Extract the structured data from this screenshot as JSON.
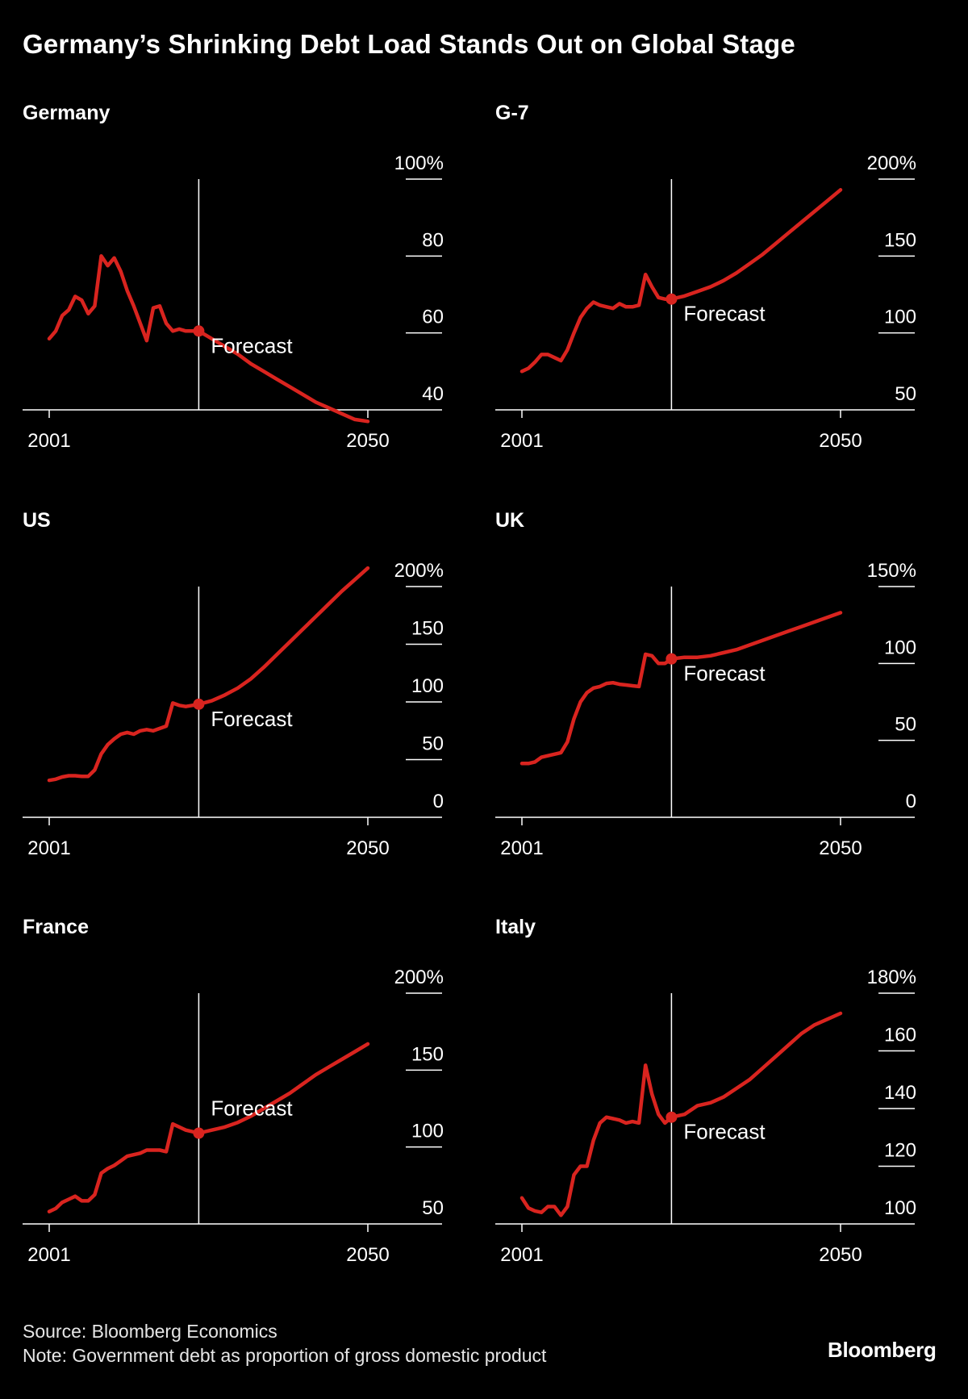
{
  "title": "Germany’s Shrinking Debt Load Stands Out on Global Stage",
  "source": "Source: Bloomberg Economics",
  "note": "Note: Government debt as proportion of gross domestic product",
  "brand": "Bloomberg",
  "colors": {
    "background": "#000000",
    "series": "#d9241f",
    "axis": "#ffffff",
    "text": "#ffffff"
  },
  "chart_data": [
    {
      "type": "line",
      "title": "Germany",
      "x_tick_labels": [
        "2001",
        "2050"
      ],
      "y_ticks": [
        40,
        60,
        80,
        100
      ],
      "y_tick_labels": [
        "40",
        "60",
        "80",
        "100%"
      ],
      "ylim": [
        40,
        100
      ],
      "xlim": [
        2001,
        2050
      ],
      "annotation": "Forecast",
      "forecast_start": 2024,
      "series": [
        {
          "x": [
            2001,
            2002,
            2003,
            2004,
            2005,
            2006,
            2007,
            2008,
            2009,
            2010,
            2011,
            2012,
            2013,
            2014,
            2015,
            2016,
            2017,
            2018,
            2019,
            2020,
            2021,
            2022,
            2023,
            2024,
            2026,
            2028,
            2030,
            2032,
            2034,
            2036,
            2038,
            2040,
            2042,
            2044,
            2046,
            2048,
            2050
          ],
          "y": [
            58.5,
            60.5,
            64.5,
            66,
            69.5,
            68.5,
            65,
            67,
            80,
            77.5,
            79.5,
            76,
            71,
            67,
            62.5,
            58,
            66.5,
            67,
            62.5,
            60.5,
            61,
            60.5,
            60.5,
            60.5,
            58.5,
            56.5,
            54.5,
            52,
            50,
            48,
            46,
            44,
            42,
            40.5,
            39,
            37.5,
            37
          ]
        }
      ]
    },
    {
      "type": "line",
      "title": "G-7",
      "x_tick_labels": [
        "2001",
        "2050"
      ],
      "y_ticks": [
        50,
        100,
        150,
        200
      ],
      "y_tick_labels": [
        "50",
        "100",
        "150",
        "200%"
      ],
      "ylim": [
        50,
        200
      ],
      "xlim": [
        2001,
        2050
      ],
      "annotation": "Forecast",
      "forecast_start": 2024,
      "series": [
        {
          "x": [
            2001,
            2002,
            2003,
            2004,
            2005,
            2006,
            2007,
            2008,
            2009,
            2010,
            2011,
            2012,
            2013,
            2014,
            2015,
            2016,
            2017,
            2018,
            2019,
            2020,
            2021,
            2022,
            2023,
            2024,
            2026,
            2028,
            2030,
            2032,
            2034,
            2036,
            2038,
            2040,
            2042,
            2044,
            2046,
            2048,
            2050
          ],
          "y": [
            75,
            77,
            81,
            86,
            86,
            84,
            82,
            89,
            100,
            110,
            116,
            120,
            118,
            117,
            116,
            119,
            117,
            117,
            118,
            138,
            130,
            123,
            122,
            122,
            124,
            127,
            130,
            134,
            139,
            145,
            151,
            158,
            165,
            172,
            179,
            186,
            193
          ]
        }
      ]
    },
    {
      "type": "line",
      "title": "US",
      "x_tick_labels": [
        "2001",
        "2050"
      ],
      "y_ticks": [
        0,
        50,
        100,
        150,
        200
      ],
      "y_tick_labels": [
        "0",
        "50",
        "100",
        "150",
        "200%"
      ],
      "ylim": [
        0,
        200
      ],
      "xlim": [
        2001,
        2050
      ],
      "annotation": "Forecast",
      "forecast_start": 2024,
      "series": [
        {
          "x": [
            2001,
            2002,
            2003,
            2004,
            2005,
            2006,
            2007,
            2008,
            2009,
            2010,
            2011,
            2012,
            2013,
            2014,
            2015,
            2016,
            2017,
            2018,
            2019,
            2020,
            2021,
            2022,
            2023,
            2024,
            2026,
            2028,
            2030,
            2032,
            2034,
            2036,
            2038,
            2040,
            2042,
            2044,
            2046,
            2048,
            2050
          ],
          "y": [
            32,
            33,
            35,
            36,
            36,
            35.5,
            35.5,
            41,
            55,
            63,
            68,
            72,
            73.5,
            72,
            75,
            76,
            75,
            77,
            79,
            99,
            97,
            96,
            97,
            98,
            101,
            106,
            112,
            120,
            130,
            141,
            152,
            163,
            174,
            185,
            196,
            206,
            216
          ]
        }
      ]
    },
    {
      "type": "line",
      "title": "UK",
      "x_tick_labels": [
        "2001",
        "2050"
      ],
      "y_ticks": [
        0,
        50,
        100,
        150
      ],
      "y_tick_labels": [
        "0",
        "50",
        "100",
        "150%"
      ],
      "ylim": [
        0,
        150
      ],
      "xlim": [
        2001,
        2050
      ],
      "annotation": "Forecast",
      "forecast_start": 2024,
      "series": [
        {
          "x": [
            2001,
            2002,
            2003,
            2004,
            2005,
            2006,
            2007,
            2008,
            2009,
            2010,
            2011,
            2012,
            2013,
            2014,
            2015,
            2016,
            2017,
            2018,
            2019,
            2020,
            2021,
            2022,
            2023,
            2024,
            2026,
            2028,
            2030,
            2032,
            2034,
            2036,
            2038,
            2040,
            2042,
            2044,
            2046,
            2048,
            2050
          ],
          "y": [
            35,
            35,
            36,
            39,
            40,
            41,
            42,
            49,
            64,
            75,
            81,
            84,
            85,
            87,
            87.5,
            86.5,
            86,
            85.5,
            85,
            106,
            105,
            100,
            100,
            103,
            104,
            104,
            105,
            107,
            109,
            112,
            115,
            118,
            121,
            124,
            127,
            130,
            133
          ]
        }
      ]
    },
    {
      "type": "line",
      "title": "France",
      "x_tick_labels": [
        "2001",
        "2050"
      ],
      "y_ticks": [
        50,
        100,
        150,
        200
      ],
      "y_tick_labels": [
        "50",
        "100",
        "150",
        "200%"
      ],
      "ylim": [
        50,
        200
      ],
      "xlim": [
        2001,
        2050
      ],
      "annotation": "Forecast",
      "forecast_start": 2024,
      "series": [
        {
          "x": [
            2001,
            2002,
            2003,
            2004,
            2005,
            2006,
            2007,
            2008,
            2009,
            2010,
            2011,
            2012,
            2013,
            2014,
            2015,
            2016,
            2017,
            2018,
            2019,
            2020,
            2021,
            2022,
            2023,
            2024,
            2026,
            2028,
            2030,
            2032,
            2034,
            2036,
            2038,
            2040,
            2042,
            2044,
            2046,
            2048,
            2050
          ],
          "y": [
            58,
            60,
            64,
            66,
            68,
            65,
            65,
            69,
            83,
            86,
            88,
            91,
            94,
            95,
            96,
            98,
            98,
            98,
            97,
            115,
            113,
            111,
            110,
            109,
            111,
            113,
            116,
            120,
            125,
            130,
            135,
            141,
            147,
            152,
            157,
            162,
            167
          ]
        }
      ]
    },
    {
      "type": "line",
      "title": "Italy",
      "x_tick_labels": [
        "2001",
        "2050"
      ],
      "y_ticks": [
        100,
        120,
        140,
        160,
        180
      ],
      "y_tick_labels": [
        "100",
        "120",
        "140",
        "160",
        "180%"
      ],
      "ylim": [
        100,
        180
      ],
      "xlim": [
        2001,
        2050
      ],
      "annotation": "Forecast",
      "forecast_start": 2024,
      "series": [
        {
          "x": [
            2001,
            2002,
            2003,
            2004,
            2005,
            2006,
            2007,
            2008,
            2009,
            2010,
            2011,
            2012,
            2013,
            2014,
            2015,
            2016,
            2017,
            2018,
            2019,
            2020,
            2021,
            2022,
            2023,
            2024,
            2026,
            2028,
            2030,
            2032,
            2034,
            2036,
            2038,
            2040,
            2042,
            2044,
            2046,
            2048,
            2050
          ],
          "y": [
            109,
            105.5,
            104.5,
            104,
            106,
            106,
            103,
            106,
            117,
            120,
            120,
            129,
            135,
            137,
            136.5,
            136,
            135,
            135.5,
            135,
            155,
            145,
            138,
            135,
            137,
            138,
            141,
            142,
            144,
            147,
            150,
            154,
            158,
            162,
            166,
            169,
            171,
            173
          ]
        }
      ]
    }
  ]
}
